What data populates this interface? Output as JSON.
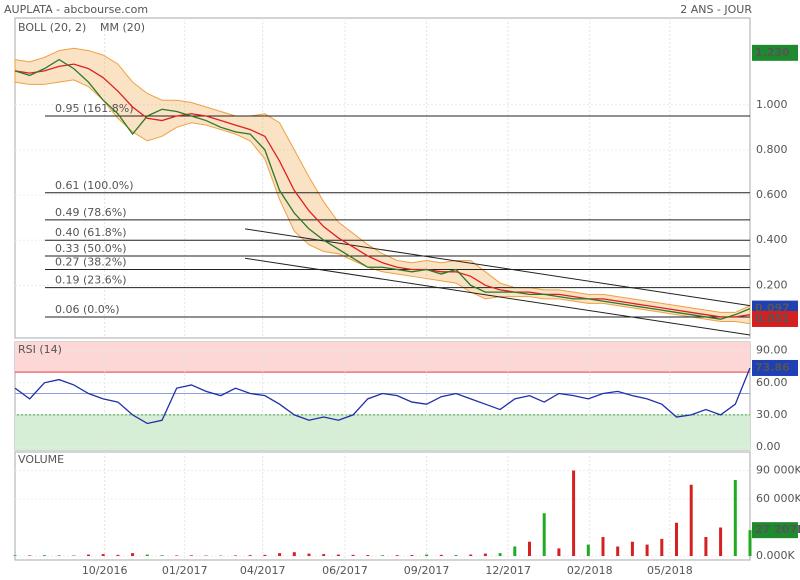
{
  "chart_data": [
    {
      "type": "line",
      "title": "AUPLATA - abcbourse.com",
      "subtitle": "2 ANS - JOUR",
      "x": [
        0,
        2,
        4,
        6,
        8,
        10,
        12,
        14,
        16,
        18,
        20,
        22,
        24,
        26,
        28,
        30,
        32,
        34,
        36,
        38,
        40,
        42,
        44,
        46,
        48,
        50,
        52,
        54,
        56,
        58,
        60,
        62,
        64,
        66,
        68,
        70,
        72,
        74,
        76,
        78,
        80,
        82,
        84,
        86,
        88,
        90,
        92,
        94,
        96,
        98,
        100
      ],
      "xlim": [
        0,
        100
      ],
      "xticks": [
        {
          "value": 12.2,
          "label": "10/2016"
        },
        {
          "value": 23.1,
          "label": "01/2017"
        },
        {
          "value": 33.7,
          "label": "04/2017"
        },
        {
          "value": 44.9,
          "label": "06/2017"
        },
        {
          "value": 56.0,
          "label": "09/2017"
        },
        {
          "value": 67.1,
          "label": "12/2017"
        },
        {
          "value": 78.2,
          "label": "02/2018"
        },
        {
          "value": 89.1,
          "label": "05/2018"
        }
      ],
      "ylim": [
        -0.02,
        1.34
      ],
      "yticks": [
        {
          "value": 0.2,
          "label": "0.200"
        },
        {
          "value": 0.4,
          "label": "0.400"
        },
        {
          "value": 0.6,
          "label": "0.600"
        },
        {
          "value": 0.8,
          "label": "0.800"
        },
        {
          "value": 1.0,
          "label": "1.000"
        }
      ],
      "grid": true,
      "bands": {
        "name": "BOLL (20, 2)",
        "color": "#f0a040",
        "upper": [
          1.2,
          1.19,
          1.21,
          1.24,
          1.25,
          1.24,
          1.22,
          1.18,
          1.1,
          1.05,
          1.02,
          1.02,
          1.01,
          0.99,
          0.97,
          0.95,
          0.95,
          0.96,
          0.92,
          0.8,
          0.68,
          0.57,
          0.48,
          0.43,
          0.38,
          0.34,
          0.31,
          0.3,
          0.31,
          0.3,
          0.31,
          0.31,
          0.26,
          0.21,
          0.19,
          0.19,
          0.18,
          0.18,
          0.17,
          0.16,
          0.16,
          0.15,
          0.14,
          0.13,
          0.12,
          0.11,
          0.1,
          0.09,
          0.08,
          0.08,
          0.11
        ],
        "lower": [
          1.1,
          1.09,
          1.09,
          1.1,
          1.11,
          1.08,
          1.02,
          0.94,
          0.88,
          0.84,
          0.86,
          0.9,
          0.92,
          0.91,
          0.89,
          0.87,
          0.84,
          0.76,
          0.58,
          0.44,
          0.38,
          0.35,
          0.34,
          0.31,
          0.28,
          0.26,
          0.25,
          0.24,
          0.23,
          0.22,
          0.21,
          0.17,
          0.14,
          0.15,
          0.15,
          0.15,
          0.14,
          0.14,
          0.13,
          0.12,
          0.12,
          0.11,
          0.1,
          0.09,
          0.08,
          0.07,
          0.06,
          0.05,
          0.04,
          0.04,
          0.03
        ]
      },
      "series": [
        {
          "name": "MM (20)",
          "color": "#e02020",
          "values": [
            1.15,
            1.14,
            1.15,
            1.17,
            1.18,
            1.16,
            1.12,
            1.06,
            0.99,
            0.94,
            0.93,
            0.95,
            0.96,
            0.95,
            0.93,
            0.91,
            0.89,
            0.86,
            0.75,
            0.62,
            0.53,
            0.46,
            0.41,
            0.37,
            0.33,
            0.3,
            0.28,
            0.27,
            0.27,
            0.26,
            0.26,
            0.24,
            0.2,
            0.18,
            0.17,
            0.17,
            0.16,
            0.16,
            0.15,
            0.14,
            0.14,
            0.13,
            0.12,
            0.11,
            0.1,
            0.09,
            0.08,
            0.07,
            0.06,
            0.06,
            0.07
          ]
        },
        {
          "color": "#2a7a2a",
          "values": [
            1.15,
            1.13,
            1.16,
            1.2,
            1.16,
            1.1,
            1.02,
            0.96,
            0.87,
            0.95,
            0.98,
            0.97,
            0.95,
            0.93,
            0.9,
            0.88,
            0.87,
            0.8,
            0.62,
            0.52,
            0.45,
            0.4,
            0.36,
            0.32,
            0.28,
            0.28,
            0.27,
            0.26,
            0.27,
            0.25,
            0.27,
            0.2,
            0.17,
            0.17,
            0.17,
            0.16,
            0.16,
            0.15,
            0.14,
            0.14,
            0.13,
            0.12,
            0.11,
            0.1,
            0.09,
            0.08,
            0.07,
            0.06,
            0.05,
            0.07,
            0.097
          ]
        }
      ],
      "fib_levels": [
        {
          "value": 0.95,
          "label": "0.95  (161.8%)"
        },
        {
          "value": 0.61,
          "label": "0.61  (100.0%)"
        },
        {
          "value": 0.49,
          "label": "0.49  (78.6%)"
        },
        {
          "value": 0.4,
          "label": "0.40  (61.8%)"
        },
        {
          "value": 0.33,
          "label": "0.33  (50.0%)"
        },
        {
          "value": 0.27,
          "label": "0.27  (38.2%)"
        },
        {
          "value": 0.19,
          "label": "0.19  (23.6%)"
        },
        {
          "value": 0.06,
          "label": "0.06  (0.0%)"
        }
      ],
      "trendlines": [
        {
          "x": [
            31.3,
            100
          ],
          "y": [
            0.45,
            0.11
          ]
        },
        {
          "x": [
            31.3,
            100
          ],
          "y": [
            0.32,
            -0.02
          ]
        }
      ],
      "markers": [
        {
          "value": 1.23,
          "label": "1.230",
          "color": "#1e8a2e"
        },
        {
          "value": 0.097,
          "label": "0.097",
          "color": "#1f3fb4"
        },
        {
          "value": 0.051,
          "label": "0.051",
          "color": "#d42020"
        }
      ]
    },
    {
      "type": "line",
      "title": "RSI (14)",
      "ylim": [
        0,
        100
      ],
      "yticks": [
        {
          "value": 0,
          "label": "0.00"
        },
        {
          "value": 30,
          "label": "30.00"
        },
        {
          "value": 60,
          "label": "60.00"
        },
        {
          "value": 90,
          "label": "90.00"
        }
      ],
      "overbought": 70,
      "oversold": 30,
      "midline": 50,
      "series": [
        {
          "color": "#1f2fa8",
          "values": [
            55,
            45,
            60,
            63,
            58,
            50,
            45,
            42,
            30,
            22,
            25,
            55,
            58,
            52,
            48,
            55,
            50,
            48,
            40,
            30,
            25,
            28,
            25,
            30,
            45,
            50,
            48,
            42,
            40,
            47,
            50,
            45,
            40,
            35,
            45,
            48,
            42,
            50,
            48,
            45,
            50,
            52,
            48,
            45,
            40,
            28,
            30,
            35,
            30,
            40,
            73.86
          ]
        }
      ],
      "markers": [
        {
          "value": 73.86,
          "label": "73.86",
          "color": "#1f3fb4"
        }
      ]
    },
    {
      "type": "bar",
      "title": "VOLUME",
      "ylim": [
        0,
        100000
      ],
      "yticks": [
        {
          "value": 0,
          "label": "0.000K"
        },
        {
          "value": 60000,
          "label": "60 000K"
        },
        {
          "value": 90000,
          "label": "90 000K"
        }
      ],
      "up_color": "#22aa22",
      "down_color": "#d42020",
      "values": [
        800,
        600,
        900,
        700,
        500,
        1500,
        2000,
        1200,
        3000,
        1500,
        800,
        600,
        700,
        500,
        400,
        600,
        900,
        1200,
        3000,
        4000,
        2500,
        2000,
        1500,
        1200,
        1000,
        800,
        900,
        1000,
        1500,
        1200,
        1000,
        1500,
        2500,
        3000,
        10000,
        15000,
        45000,
        8000,
        90000,
        12000,
        20000,
        10000,
        15000,
        12000,
        18000,
        35000,
        75000,
        20000,
        30000,
        80000,
        27207
      ],
      "markers": [
        {
          "value": 27207,
          "label": "27 207K",
          "color": "#1e8a2e"
        }
      ]
    }
  ]
}
